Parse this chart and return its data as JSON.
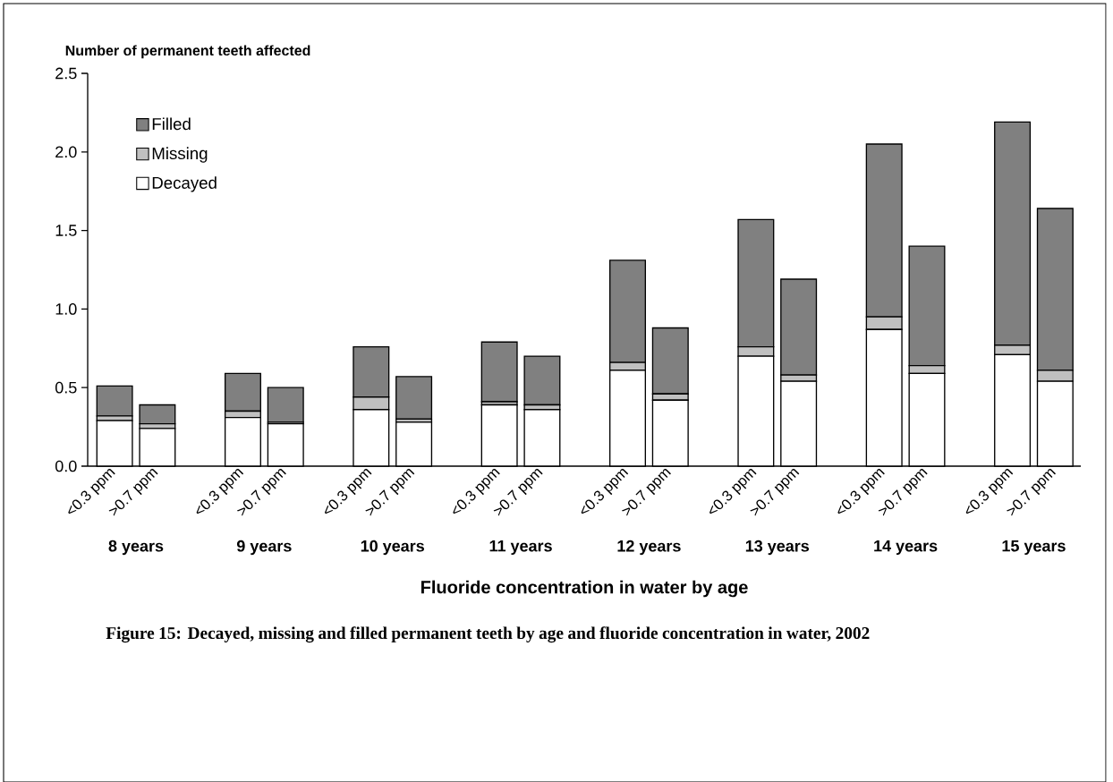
{
  "chart_data": {
    "type": "bar",
    "stacked": true,
    "title": "Figure 15:  Decayed, missing and filled permanent teeth by age and fluoride concentration in water, 2002",
    "xlabel": "Fluoride concentration in water by age",
    "ylabel": "Number of permanent teeth affected",
    "categories": [
      "<0.3 ppm",
      ">0.7 ppm",
      "<0.3 ppm",
      ">0.7 ppm",
      "<0.3 ppm",
      ">0.7 ppm",
      "<0.3 ppm",
      ">0.7 ppm",
      "<0.3 ppm",
      ">0.7 ppm",
      "<0.3 ppm",
      ">0.7 ppm",
      "<0.3 ppm",
      ">0.7 ppm",
      "<0.3 ppm",
      ">0.7 ppm"
    ],
    "annotations": [
      "8 years",
      "9 years",
      "10 years",
      "11 years",
      "12 years",
      "13 years",
      "14 years",
      "15 years"
    ],
    "series": [
      {
        "name": "Decayed",
        "color": "#ffffff",
        "values": [
          0.29,
          0.24,
          0.31,
          0.27,
          0.36,
          0.28,
          0.39,
          0.36,
          0.61,
          0.42,
          0.7,
          0.54,
          0.87,
          0.59,
          0.71,
          0.54
        ]
      },
      {
        "name": "Missing",
        "color": "#c0c0c0",
        "values": [
          0.03,
          0.03,
          0.04,
          0.01,
          0.08,
          0.02,
          0.02,
          0.03,
          0.05,
          0.04,
          0.06,
          0.04,
          0.08,
          0.05,
          0.06,
          0.07
        ]
      },
      {
        "name": "Filled",
        "color": "#808080",
        "values": [
          0.19,
          0.12,
          0.24,
          0.22,
          0.32,
          0.27,
          0.38,
          0.31,
          0.65,
          0.42,
          0.81,
          0.61,
          1.1,
          0.76,
          1.42,
          1.03
        ]
      }
    ],
    "ylim": [
      0,
      2.5
    ],
    "yticks": [
      {
        "value": 0,
        "label": "0.0"
      },
      0.5,
      {
        "value": 1,
        "label": "1.0"
      },
      1.5,
      {
        "value": 2,
        "label": "2.0"
      },
      2.5
    ],
    "legend": "top left",
    "grid": false
  }
}
